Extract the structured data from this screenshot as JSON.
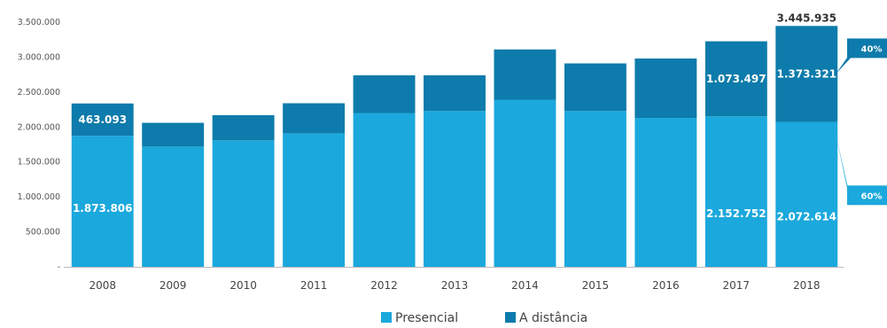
{
  "chart_data": {
    "type": "bar",
    "stacked": true,
    "categories": [
      "2008",
      "2009",
      "2010",
      "2011",
      "2012",
      "2013",
      "2014",
      "2015",
      "2016",
      "2017",
      "2018"
    ],
    "series": [
      {
        "name": "Presencial",
        "color": "#1ba8dc",
        "values": [
          1873806,
          1720000,
          1810000,
          1910000,
          2200000,
          2230000,
          2390000,
          2230000,
          2130000,
          2152752,
          2072614
        ],
        "labels": [
          "1.873.806",
          "",
          "",
          "",
          "",
          "",
          "",
          "",
          "",
          "2.152.752",
          "2.072.614"
        ]
      },
      {
        "name": "A distância",
        "color": "#0d7bab",
        "values": [
          463093,
          340000,
          360000,
          430000,
          540000,
          510000,
          720000,
          680000,
          850000,
          1073497,
          1373321
        ],
        "labels": [
          "463.093",
          "",
          "",
          "",
          "",
          "",
          "",
          "",
          "",
          "1.073.497",
          "1.373.321"
        ]
      }
    ],
    "total_label": "3.445.935",
    "y_ticks": [
      {
        "value": 0,
        "label": "-"
      },
      {
        "value": 500000,
        "label": "500.000"
      },
      {
        "value": 1000000,
        "label": "1.000.000"
      },
      {
        "value": 1500000,
        "label": "1.500.000"
      },
      {
        "value": 2000000,
        "label": "2.000.000"
      },
      {
        "value": 2500000,
        "label": "2.500.000"
      },
      {
        "value": 3000000,
        "label": "3.000.000"
      },
      {
        "value": 3500000,
        "label": "3.500.000"
      }
    ],
    "ylim": [
      0,
      3500000
    ],
    "share_callouts": [
      {
        "label": "40%",
        "series": "A distância"
      },
      {
        "label": "60%",
        "series": "Presencial"
      }
    ],
    "legend_position": "bottom",
    "grid": false
  }
}
